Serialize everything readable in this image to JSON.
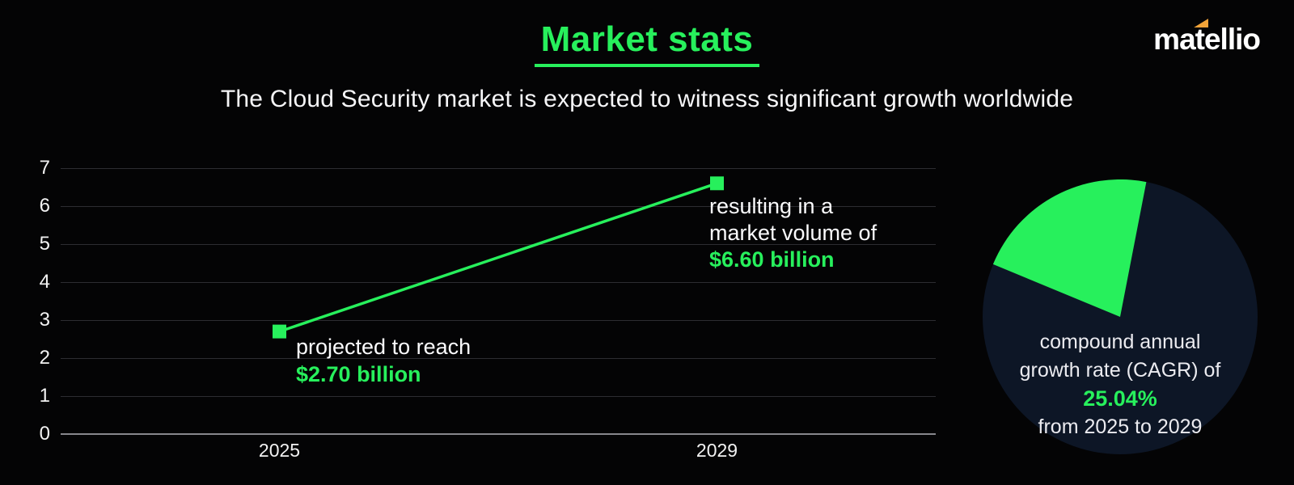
{
  "header": {
    "title": "Market stats",
    "subtitle": "The Cloud Security market is expected to witness significant growth worldwide",
    "logo_text": "matellio"
  },
  "colors": {
    "accent_green": "#27f05c",
    "pie_navy": "#0d1626",
    "logo_orange": "#f2a338",
    "background": "#040405",
    "gridline": "#2d2d31",
    "axis_line": "#87878c",
    "text_white": "#f6f6f8"
  },
  "chart_data": [
    {
      "type": "line",
      "categories": [
        "2025",
        "2029"
      ],
      "series": [
        {
          "values": [
            2.7,
            6.6
          ]
        }
      ],
      "ylim": [
        0,
        7
      ],
      "y_ticks": [
        0,
        1,
        2,
        3,
        4,
        5,
        6,
        7
      ],
      "grid": true,
      "marker": "square",
      "legend": "none",
      "annotations": [
        {
          "lines": [
            "projected to reach"
          ],
          "value": "$2.70 billion"
        },
        {
          "lines": [
            "resulting in a",
            "market volume of"
          ],
          "value": "$6.60 billion"
        }
      ]
    },
    {
      "type": "pie",
      "slices": [
        {
          "label": "CAGR",
          "value": 25.04
        },
        {
          "label": "remainder",
          "value": 74.96
        }
      ],
      "caption_lines": [
        "compound annual",
        "growth rate (CAGR) of"
      ],
      "caption_value": "25.04%",
      "caption_suffix": "from 2025 to 2029"
    }
  ]
}
